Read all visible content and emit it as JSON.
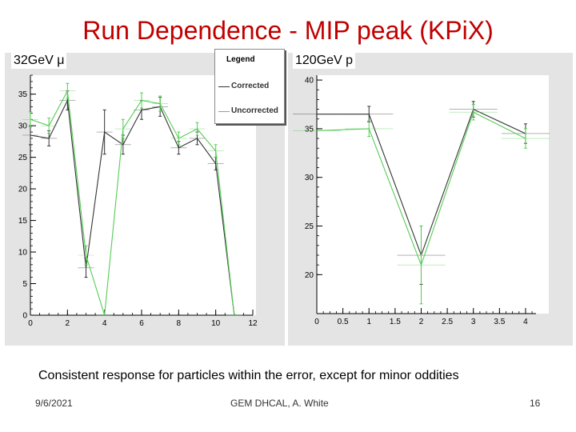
{
  "title": "Run Dependence - MIP peak (KPiX)",
  "caption": "Consistent response for particles within the error, except for minor oddities",
  "footer": {
    "date": "9/6/2021",
    "author": "GEM DHCAL, A. White",
    "page": "16"
  },
  "legend": {
    "title": "Legend",
    "entries": [
      {
        "name": "Corrected",
        "color": "#333333"
      },
      {
        "name": "Uncorrected",
        "color": "#55cc55"
      }
    ]
  },
  "chart_data": [
    {
      "type": "line",
      "label": "32GeV μ",
      "xlim": [
        0,
        12
      ],
      "ylim": [
        0,
        38
      ],
      "xticks": [
        0,
        2,
        4,
        6,
        8,
        10,
        12
      ],
      "yticks": [
        0,
        5,
        10,
        15,
        20,
        25,
        30,
        35
      ],
      "series": [
        {
          "name": "Corrected",
          "color": "#333333",
          "x": [
            0,
            1,
            2,
            3,
            4,
            5,
            6,
            7,
            8,
            9,
            10,
            11
          ],
          "y": [
            28.5,
            28,
            34,
            7.5,
            29,
            27,
            32.5,
            33,
            26.5,
            28,
            24,
            0
          ],
          "err": [
            1.5,
            1.2,
            1.5,
            1.5,
            3.5,
            1.5,
            1.5,
            1.5,
            1,
            1,
            1,
            0
          ]
        },
        {
          "name": "Uncorrected",
          "color": "#55cc55",
          "x": [
            0,
            1,
            2,
            3,
            4,
            5,
            6,
            7,
            8,
            9,
            10,
            11
          ],
          "y": [
            31,
            30,
            35.5,
            9.5,
            0,
            29.5,
            34,
            33.5,
            28,
            29.5,
            26,
            0
          ],
          "err": [
            1.2,
            1.2,
            1.2,
            1.5,
            0,
            1.5,
            1.2,
            1.2,
            1,
            1,
            1,
            0
          ]
        }
      ]
    },
    {
      "type": "line",
      "label": "120GeV p",
      "xlim": [
        0,
        4.2
      ],
      "ylim": [
        16,
        40.5
      ],
      "xticks": [
        0,
        0.5,
        1,
        1.5,
        2,
        2.5,
        3,
        3.5,
        4
      ],
      "yticks": [
        20,
        25,
        30,
        35,
        40
      ],
      "series": [
        {
          "name": "Corrected",
          "color": "#333333",
          "x": [
            0,
            1,
            2,
            3,
            4
          ],
          "y": [
            36.5,
            36.5,
            22,
            37,
            34.5
          ],
          "err": [
            0,
            0.8,
            3,
            0.8,
            1
          ]
        },
        {
          "name": "Uncorrected",
          "color": "#55cc55",
          "x": [
            0,
            1,
            2,
            3,
            4
          ],
          "y": [
            34.8,
            35,
            21,
            36.7,
            34
          ],
          "err": [
            0,
            0.8,
            4,
            0.8,
            1
          ]
        }
      ]
    }
  ]
}
